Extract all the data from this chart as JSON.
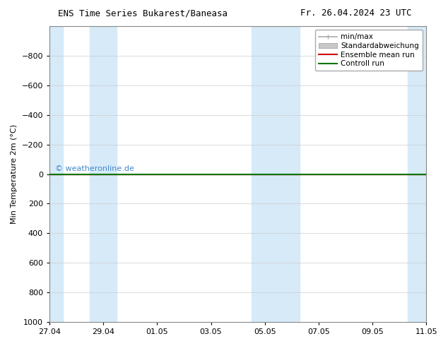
{
  "title_left": "ENS Time Series Bukarest/Baneasa",
  "title_right": "Fr. 26.04.2024 23 UTC",
  "ylabel": "Min Temperature 2m (°C)",
  "ylim_min": -1000,
  "ylim_max": 1000,
  "yticks": [
    -800,
    -600,
    -400,
    -200,
    0,
    200,
    400,
    600,
    800,
    1000
  ],
  "xtick_labels": [
    "27.04",
    "29.04",
    "01.05",
    "03.05",
    "05.05",
    "07.05",
    "09.05",
    "11.05"
  ],
  "xtick_positions": [
    0,
    2,
    4,
    6,
    8,
    10,
    12,
    14
  ],
  "x_min": 0,
  "x_max": 14,
  "background_color": "#ffffff",
  "shaded_color": "#d6eaf8",
  "shaded_bands": [
    [
      0,
      0.5
    ],
    [
      1.5,
      2.5
    ],
    [
      7.5,
      8.5
    ],
    [
      8.5,
      9.3
    ],
    [
      13.3,
      14.0
    ]
  ],
  "watermark": "© weatheronline.de",
  "watermark_color": "#4488cc",
  "legend_entries": [
    "min/max",
    "Standardabweichung",
    "Ensemble mean run",
    "Controll run"
  ],
  "line_color_control": "#007700",
  "line_color_ensemble": "#cc0000",
  "grid_color": "#cccccc",
  "title_fontsize": 9,
  "axis_fontsize": 8,
  "legend_fontsize": 7.5
}
